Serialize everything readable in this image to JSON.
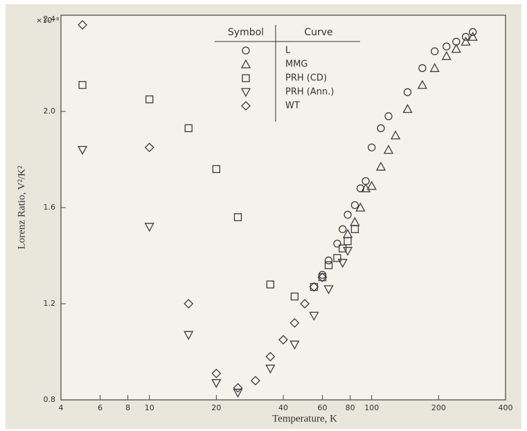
{
  "chart_data": {
    "type": "scatter",
    "ylabel_multiplier": "×10⁻⁸",
    "xlabel": "Temperature, K",
    "ylabel": "Lorenz Ratio, V²/K²",
    "legend_header": [
      "Symbol",
      "Curve"
    ],
    "xscale": "log",
    "xlim": [
      4,
      400
    ],
    "xticks": [
      4,
      6,
      8,
      10,
      20,
      40,
      60,
      80,
      100,
      200,
      400
    ],
    "ylim": [
      0.8,
      2.4
    ],
    "yticks": [
      {
        "value": 2.4,
        "label": "2.4"
      },
      {
        "value": 2,
        "label": "2.0"
      },
      1.6,
      1.2,
      {
        "value": 0.8,
        "label": "0.8"
      }
    ],
    "color": "#3a3a3a",
    "series": [
      {
        "name": "L",
        "marker": "circle",
        "x": [
          60,
          64,
          70,
          74,
          78,
          84,
          89,
          94,
          100,
          110,
          119,
          145,
          169,
          192,
          217,
          240,
          265,
          285
        ],
        "values": [
          1.32,
          1.38,
          1.45,
          1.51,
          1.57,
          1.61,
          1.68,
          1.71,
          1.85,
          1.93,
          1.98,
          2.08,
          2.18,
          2.25,
          2.27,
          2.29,
          2.31,
          2.33
        ]
      },
      {
        "name": "MMG",
        "marker": "triangle",
        "x": [
          78,
          84,
          89,
          94,
          100,
          110,
          119,
          128,
          145,
          169,
          192,
          217,
          240,
          265,
          285
        ],
        "values": [
          1.49,
          1.54,
          1.6,
          1.68,
          1.69,
          1.77,
          1.84,
          1.9,
          2.01,
          2.11,
          2.18,
          2.23,
          2.26,
          2.29,
          2.31
        ]
      },
      {
        "name": "PRH (CD)",
        "marker": "square",
        "x": [
          5,
          10,
          15,
          20,
          25,
          35,
          45,
          55,
          60,
          64,
          70,
          74,
          78,
          84
        ],
        "values": [
          2.11,
          2.05,
          1.93,
          1.76,
          1.56,
          1.28,
          1.23,
          1.27,
          1.31,
          1.36,
          1.39,
          1.43,
          1.46,
          1.51
        ]
      },
      {
        "name": "PRH (Ann.)",
        "marker": "triangle-down",
        "x": [
          5,
          10,
          15,
          20,
          25,
          35,
          45,
          55,
          64,
          74,
          78
        ],
        "values": [
          1.84,
          1.52,
          1.07,
          0.87,
          0.83,
          0.93,
          1.03,
          1.15,
          1.26,
          1.37,
          1.42
        ]
      },
      {
        "name": "WT",
        "marker": "diamond",
        "x": [
          5,
          10,
          15,
          20,
          25,
          30,
          35,
          40,
          45,
          50,
          55,
          60
        ],
        "values": [
          2.36,
          1.85,
          1.2,
          0.91,
          0.85,
          0.88,
          0.98,
          1.05,
          1.12,
          1.2,
          1.27,
          1.31
        ]
      }
    ]
  }
}
